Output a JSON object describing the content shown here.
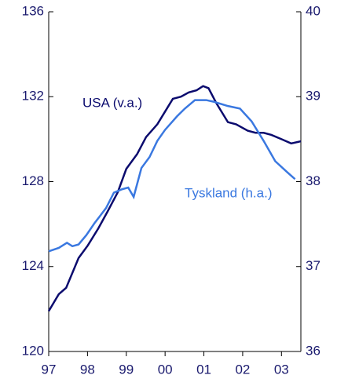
{
  "chart_data": {
    "type": "line",
    "xlim": [
      1997,
      2003.5
    ],
    "xticks": [
      {
        "value": 1997,
        "label": "97"
      },
      {
        "value": 1998,
        "label": "98"
      },
      {
        "value": 1999,
        "label": "99"
      },
      {
        "value": 2000,
        "label": "00"
      },
      {
        "value": 2001,
        "label": "01"
      },
      {
        "value": 2002,
        "label": "02"
      },
      {
        "value": 2003,
        "label": "03"
      }
    ],
    "ylim": [
      120,
      136
    ],
    "yticks": [
      120,
      124,
      128,
      132,
      136
    ],
    "y2lim": [
      36,
      40
    ],
    "y2ticks": [
      36,
      37,
      38,
      39,
      40
    ],
    "series": [
      {
        "name": "USA (v.a.)",
        "color": "#0b0b6e",
        "axis": "y",
        "x": [
          1997.0,
          1997.26,
          1997.45,
          1997.77,
          1998.01,
          1998.28,
          1998.52,
          1998.78,
          1999.0,
          1999.28,
          1999.51,
          1999.8,
          2000.0,
          2000.2,
          2000.41,
          2000.61,
          2000.81,
          2000.98,
          2001.12,
          2001.32,
          2001.62,
          2001.83,
          2002.13,
          2002.33,
          2002.54,
          2002.74,
          2003.0,
          2003.25,
          2003.5
        ],
        "values": [
          121.9,
          122.7,
          123.0,
          124.4,
          125.0,
          125.8,
          126.6,
          127.5,
          128.6,
          129.3,
          130.1,
          130.7,
          131.3,
          131.9,
          132.0,
          132.2,
          132.3,
          132.5,
          132.4,
          131.7,
          130.8,
          130.7,
          130.4,
          130.3,
          130.3,
          130.2,
          130.0,
          129.8,
          129.9
        ]
      },
      {
        "name": "Tyskland (h.a.)",
        "color": "#3a78e0",
        "axis": "y2",
        "x": [
          1997.0,
          1997.26,
          1997.47,
          1997.61,
          1997.77,
          1997.97,
          1998.18,
          1998.48,
          1998.68,
          1998.89,
          1999.05,
          1999.19,
          1999.39,
          1999.6,
          1999.8,
          2000.0,
          2000.31,
          2000.51,
          2000.77,
          2001.06,
          2001.26,
          2001.62,
          2001.93,
          2002.23,
          2002.54,
          2002.84,
          2003.15,
          2003.35
        ],
        "values": [
          37.18,
          37.22,
          37.28,
          37.24,
          37.26,
          37.37,
          37.51,
          37.69,
          37.87,
          37.91,
          37.93,
          37.82,
          38.16,
          38.29,
          38.48,
          38.61,
          38.77,
          38.86,
          38.96,
          38.96,
          38.94,
          38.89,
          38.86,
          38.71,
          38.48,
          38.24,
          38.11,
          38.03
        ]
      }
    ]
  }
}
